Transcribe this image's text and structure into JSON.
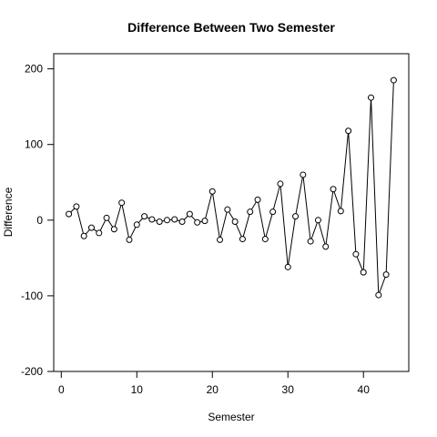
{
  "chart_data": {
    "type": "line",
    "title": "Difference Between Two Semester",
    "xlabel": "Semester",
    "ylabel": "Difference",
    "xlim": [
      -1,
      46
    ],
    "ylim": [
      -200,
      220
    ],
    "x_ticks": [
      0,
      10,
      20,
      30,
      40
    ],
    "y_ticks": [
      -200,
      -100,
      0,
      100,
      200
    ],
    "x": [
      1,
      2,
      3,
      4,
      5,
      6,
      7,
      8,
      9,
      10,
      11,
      12,
      13,
      14,
      15,
      16,
      17,
      18,
      19,
      20,
      21,
      22,
      23,
      24,
      25,
      26,
      27,
      28,
      29,
      30,
      31,
      32,
      33,
      34,
      35,
      36,
      37,
      38,
      39,
      40,
      41,
      42,
      43,
      44
    ],
    "y": [
      8,
      18,
      -21,
      -10,
      -17,
      3,
      -12,
      23,
      -26,
      -6,
      5,
      1,
      -2,
      0,
      1,
      -2,
      8,
      -3,
      -1,
      38,
      -26,
      14,
      -2,
      -25,
      11,
      27,
      -25,
      11,
      48,
      -62,
      5,
      60,
      -28,
      0,
      -35,
      41,
      12,
      118,
      -45,
      -69,
      162,
      -99,
      -72,
      185
    ],
    "marker": "open-circle",
    "line_color": "#000000",
    "grid": false
  }
}
